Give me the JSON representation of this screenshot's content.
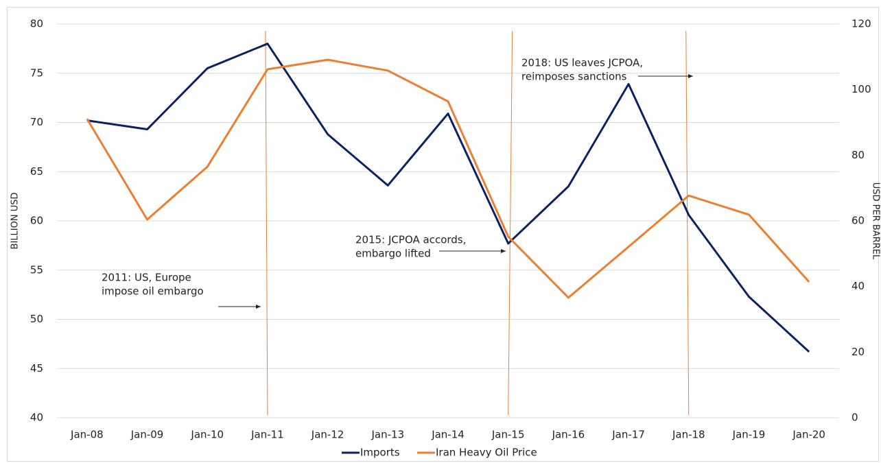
{
  "chart_data": {
    "type": "line",
    "categories": [
      "Jan-08",
      "Jan-09",
      "Jan-10",
      "Jan-11",
      "Jan-12",
      "Jan-13",
      "Jan-14",
      "Jan-15",
      "Jan-16",
      "Jan-17",
      "Jan-18",
      "Jan-19",
      "Jan-20"
    ],
    "series": [
      {
        "name": "Imports",
        "color": "#0b2161",
        "values": [
          70.2,
          69.3,
          75.5,
          78.0,
          68.8,
          63.6,
          70.9,
          57.7,
          63.5,
          73.9,
          60.6,
          52.3,
          46.7
        ]
      },
      {
        "name": "Iran Heavy Oil Price",
        "color": "#ed7d31",
        "axis": "y2",
        "values": [
          91.1,
          60.4,
          76.5,
          106.2,
          109.1,
          105.8,
          96.4,
          55.2,
          36.6,
          52.1,
          67.7,
          61.9,
          41.4
        ]
      }
    ],
    "ylabel": "BILLION USD",
    "y2label": "USD PER BARREL",
    "ylim": [
      40,
      80
    ],
    "yticks": [
      40,
      45,
      50,
      55,
      60,
      65,
      70,
      75,
      80
    ],
    "y2lim": [
      0,
      120
    ],
    "y2ticks": [
      0,
      20,
      40,
      60,
      80,
      100,
      120
    ],
    "grid": true,
    "legend": "bottom",
    "annotations": [
      {
        "lines": [
          "2011: US, Europe",
          "impose oil embargo"
        ]
      },
      {
        "lines": [
          "2015: JCPOA accords,",
          "embargo lifted"
        ]
      },
      {
        "lines": [
          "2018: US leaves JCPOA,",
          "reimposes sanctions"
        ]
      }
    ]
  }
}
